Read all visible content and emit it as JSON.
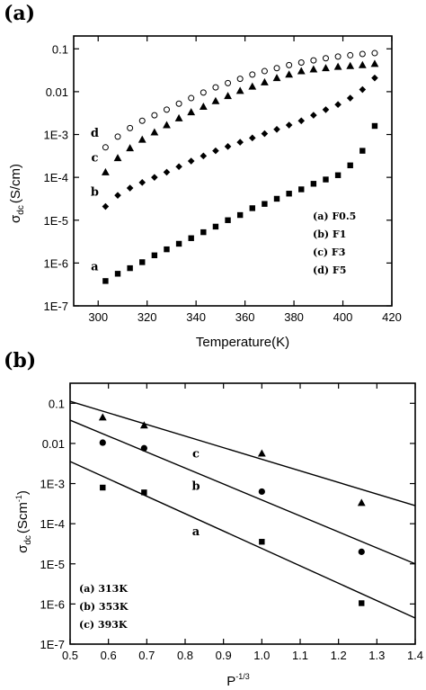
{
  "chart_data": [
    {
      "type": "scatter",
      "panel_label": "(a)",
      "xlabel": "Temperature(K)",
      "ylabel_main": "σ",
      "ylabel_sub": "dc",
      "ylabel_unit": "(S/cm)",
      "xlim": [
        290,
        420
      ],
      "ylim_log10": [
        -7,
        -0.7
      ],
      "yscale": "log",
      "x_ticks": [
        "300",
        "320",
        "340",
        "360",
        "380",
        "400",
        "420"
      ],
      "x_tick_values": [
        300,
        320,
        340,
        360,
        380,
        400,
        420
      ],
      "y_ticks": [
        "1E-7",
        "1E-6",
        "1E-5",
        "1E-4",
        "1E-3",
        "0.01",
        "0.1"
      ],
      "y_tick_values": [
        -7,
        -6,
        -5,
        -4,
        -3,
        -2,
        -1
      ],
      "legend": [
        "(a)  F0.5",
        "(b)  F1",
        "(c)  F3",
        "(d)  F5"
      ],
      "legend_position": "bottom-right",
      "series": [
        {
          "letter": "a",
          "marker": "square",
          "x": [
            303,
            308,
            313,
            318,
            323,
            328,
            333,
            338,
            343,
            348,
            353,
            358,
            363,
            368,
            373,
            378,
            383,
            388,
            393,
            398,
            403,
            408,
            413
          ],
          "log_y": [
            -6.42,
            -6.25,
            -6.12,
            -5.98,
            -5.82,
            -5.68,
            -5.55,
            -5.42,
            -5.28,
            -5.15,
            -5.0,
            -4.88,
            -4.72,
            -4.62,
            -4.5,
            -4.38,
            -4.28,
            -4.15,
            -4.05,
            -3.95,
            -3.72,
            -3.38,
            -2.8
          ]
        },
        {
          "letter": "b",
          "marker": "diamond",
          "x": [
            303,
            308,
            313,
            318,
            323,
            328,
            333,
            338,
            343,
            348,
            353,
            358,
            363,
            368,
            373,
            378,
            383,
            388,
            393,
            398,
            403,
            408,
            413
          ],
          "log_y": [
            -4.68,
            -4.42,
            -4.25,
            -4.12,
            -4.0,
            -3.88,
            -3.75,
            -3.62,
            -3.5,
            -3.38,
            -3.28,
            -3.18,
            -3.08,
            -2.98,
            -2.88,
            -2.78,
            -2.68,
            -2.55,
            -2.42,
            -2.3,
            -2.15,
            -1.95,
            -1.68
          ]
        },
        {
          "letter": "c",
          "marker": "triangle",
          "x": [
            303,
            308,
            313,
            318,
            323,
            328,
            333,
            338,
            343,
            348,
            353,
            358,
            363,
            368,
            373,
            378,
            383,
            388,
            393,
            398,
            403,
            408,
            413
          ],
          "log_y": [
            -3.88,
            -3.55,
            -3.32,
            -3.12,
            -2.95,
            -2.78,
            -2.62,
            -2.48,
            -2.35,
            -2.22,
            -2.1,
            -1.98,
            -1.88,
            -1.78,
            -1.68,
            -1.6,
            -1.52,
            -1.48,
            -1.45,
            -1.42,
            -1.4,
            -1.38,
            -1.35
          ]
        },
        {
          "letter": "d",
          "marker": "circle",
          "x": [
            303,
            308,
            313,
            318,
            323,
            328,
            333,
            338,
            343,
            348,
            353,
            358,
            363,
            368,
            373,
            378,
            383,
            388,
            393,
            398,
            403,
            408,
            413
          ],
          "log_y": [
            -3.3,
            -3.05,
            -2.85,
            -2.68,
            -2.55,
            -2.42,
            -2.28,
            -2.15,
            -2.02,
            -1.9,
            -1.8,
            -1.7,
            -1.6,
            -1.52,
            -1.45,
            -1.38,
            -1.32,
            -1.27,
            -1.22,
            -1.18,
            -1.15,
            -1.12,
            -1.1
          ]
        }
      ]
    },
    {
      "type": "scatter",
      "panel_label": "(b)",
      "xlabel_main": "P",
      "xlabel_sup": "-1/3",
      "ylabel_main": "σ",
      "ylabel_sub": "dc",
      "ylabel_unit": "(Scm",
      "ylabel_unit_sup": "-1",
      "ylabel_unit_close": ")",
      "xlim": [
        0.5,
        1.4
      ],
      "ylim_log10": [
        -7,
        -0.5
      ],
      "yscale": "log",
      "x_ticks": [
        "0.5",
        "0.6",
        "0.7",
        "0.8",
        "0.9",
        "1.0",
        "1.1",
        "1.2",
        "1.3",
        "1.4"
      ],
      "x_tick_values": [
        0.5,
        0.6,
        0.7,
        0.8,
        0.9,
        1.0,
        1.1,
        1.2,
        1.3,
        1.4
      ],
      "y_ticks": [
        "1E-7",
        "1E-6",
        "1E-5",
        "1E-4",
        "1E-3",
        "0.01",
        "0.1"
      ],
      "y_tick_values": [
        -7,
        -6,
        -5,
        -4,
        -3,
        -2,
        -1
      ],
      "legend": [
        "(a)  313K",
        "(b)  353K",
        "(c)  393K"
      ],
      "legend_position": "bottom-left",
      "series": [
        {
          "letter": "a",
          "marker": "square",
          "x": [
            0.585,
            0.693,
            1.0,
            1.26
          ],
          "log_y": [
            -3.1,
            -3.22,
            -4.45,
            -5.98
          ],
          "fit_log_y_at_xlim": [
            -2.45,
            -6.35
          ]
        },
        {
          "letter": "b",
          "marker": "circle",
          "x": [
            0.585,
            0.693,
            1.0,
            1.26
          ],
          "log_y": [
            -1.98,
            -2.12,
            -3.2,
            -4.7
          ],
          "fit_log_y_at_xlim": [
            -1.42,
            -5.0
          ]
        },
        {
          "letter": "c",
          "marker": "triangle",
          "x": [
            0.585,
            0.693,
            1.0,
            1.26
          ],
          "log_y": [
            -1.35,
            -1.55,
            -2.25,
            -3.48
          ],
          "fit_log_y_at_xlim": [
            -0.95,
            -3.55
          ]
        }
      ]
    }
  ]
}
